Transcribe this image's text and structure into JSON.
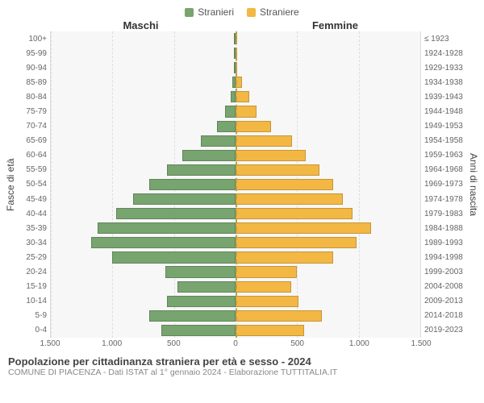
{
  "legend": {
    "male": {
      "label": "Stranieri",
      "color": "#77a46f"
    },
    "female": {
      "label": "Straniere",
      "color": "#f3b744"
    }
  },
  "headers": {
    "left": "Maschi",
    "right": "Femmine"
  },
  "axis_labels": {
    "left": "Fasce di età",
    "right": "Anni di nascita"
  },
  "chart": {
    "type": "population-pyramid",
    "background_color": "#f7f7f7",
    "grid_color": "#dddddd",
    "center_line_color": "#bba24a",
    "male_color": "#77a46f",
    "female_color": "#f3b744",
    "x_max": 1500,
    "x_ticks": [
      1500,
      1000,
      500,
      0,
      500,
      1000,
      1500
    ],
    "x_tick_labels": [
      "1.500",
      "1.000",
      "500",
      "0",
      "500",
      "1.000",
      "1.500"
    ],
    "rows": [
      {
        "age": "100+",
        "birth": "≤ 1923",
        "m": 0,
        "f": 0
      },
      {
        "age": "95-99",
        "birth": "1924-1928",
        "m": 0,
        "f": 0
      },
      {
        "age": "90-94",
        "birth": "1929-1933",
        "m": 0,
        "f": 15
      },
      {
        "age": "85-89",
        "birth": "1934-1938",
        "m": 25,
        "f": 55
      },
      {
        "age": "80-84",
        "birth": "1939-1943",
        "m": 40,
        "f": 110
      },
      {
        "age": "75-79",
        "birth": "1944-1948",
        "m": 85,
        "f": 170
      },
      {
        "age": "70-74",
        "birth": "1949-1953",
        "m": 150,
        "f": 290
      },
      {
        "age": "65-69",
        "birth": "1954-1958",
        "m": 280,
        "f": 460
      },
      {
        "age": "60-64",
        "birth": "1959-1963",
        "m": 430,
        "f": 570
      },
      {
        "age": "55-59",
        "birth": "1964-1968",
        "m": 560,
        "f": 680
      },
      {
        "age": "50-54",
        "birth": "1969-1973",
        "m": 700,
        "f": 790
      },
      {
        "age": "45-49",
        "birth": "1974-1978",
        "m": 830,
        "f": 870
      },
      {
        "age": "40-44",
        "birth": "1979-1983",
        "m": 970,
        "f": 950
      },
      {
        "age": "35-39",
        "birth": "1984-1988",
        "m": 1120,
        "f": 1100
      },
      {
        "age": "30-34",
        "birth": "1989-1993",
        "m": 1170,
        "f": 980
      },
      {
        "age": "25-29",
        "birth": "1994-1998",
        "m": 1000,
        "f": 790
      },
      {
        "age": "20-24",
        "birth": "1999-2003",
        "m": 570,
        "f": 500
      },
      {
        "age": "15-19",
        "birth": "2004-2008",
        "m": 470,
        "f": 450
      },
      {
        "age": "10-14",
        "birth": "2009-2013",
        "m": 560,
        "f": 510
      },
      {
        "age": "5-9",
        "birth": "2014-2018",
        "m": 700,
        "f": 700
      },
      {
        "age": "0-4",
        "birth": "2019-2023",
        "m": 600,
        "f": 560
      }
    ]
  },
  "footer": {
    "title": "Popolazione per cittadinanza straniera per età e sesso - 2024",
    "subtitle": "COMUNE DI PIACENZA - Dati ISTAT al 1° gennaio 2024 - Elaborazione TUTTITALIA.IT"
  }
}
